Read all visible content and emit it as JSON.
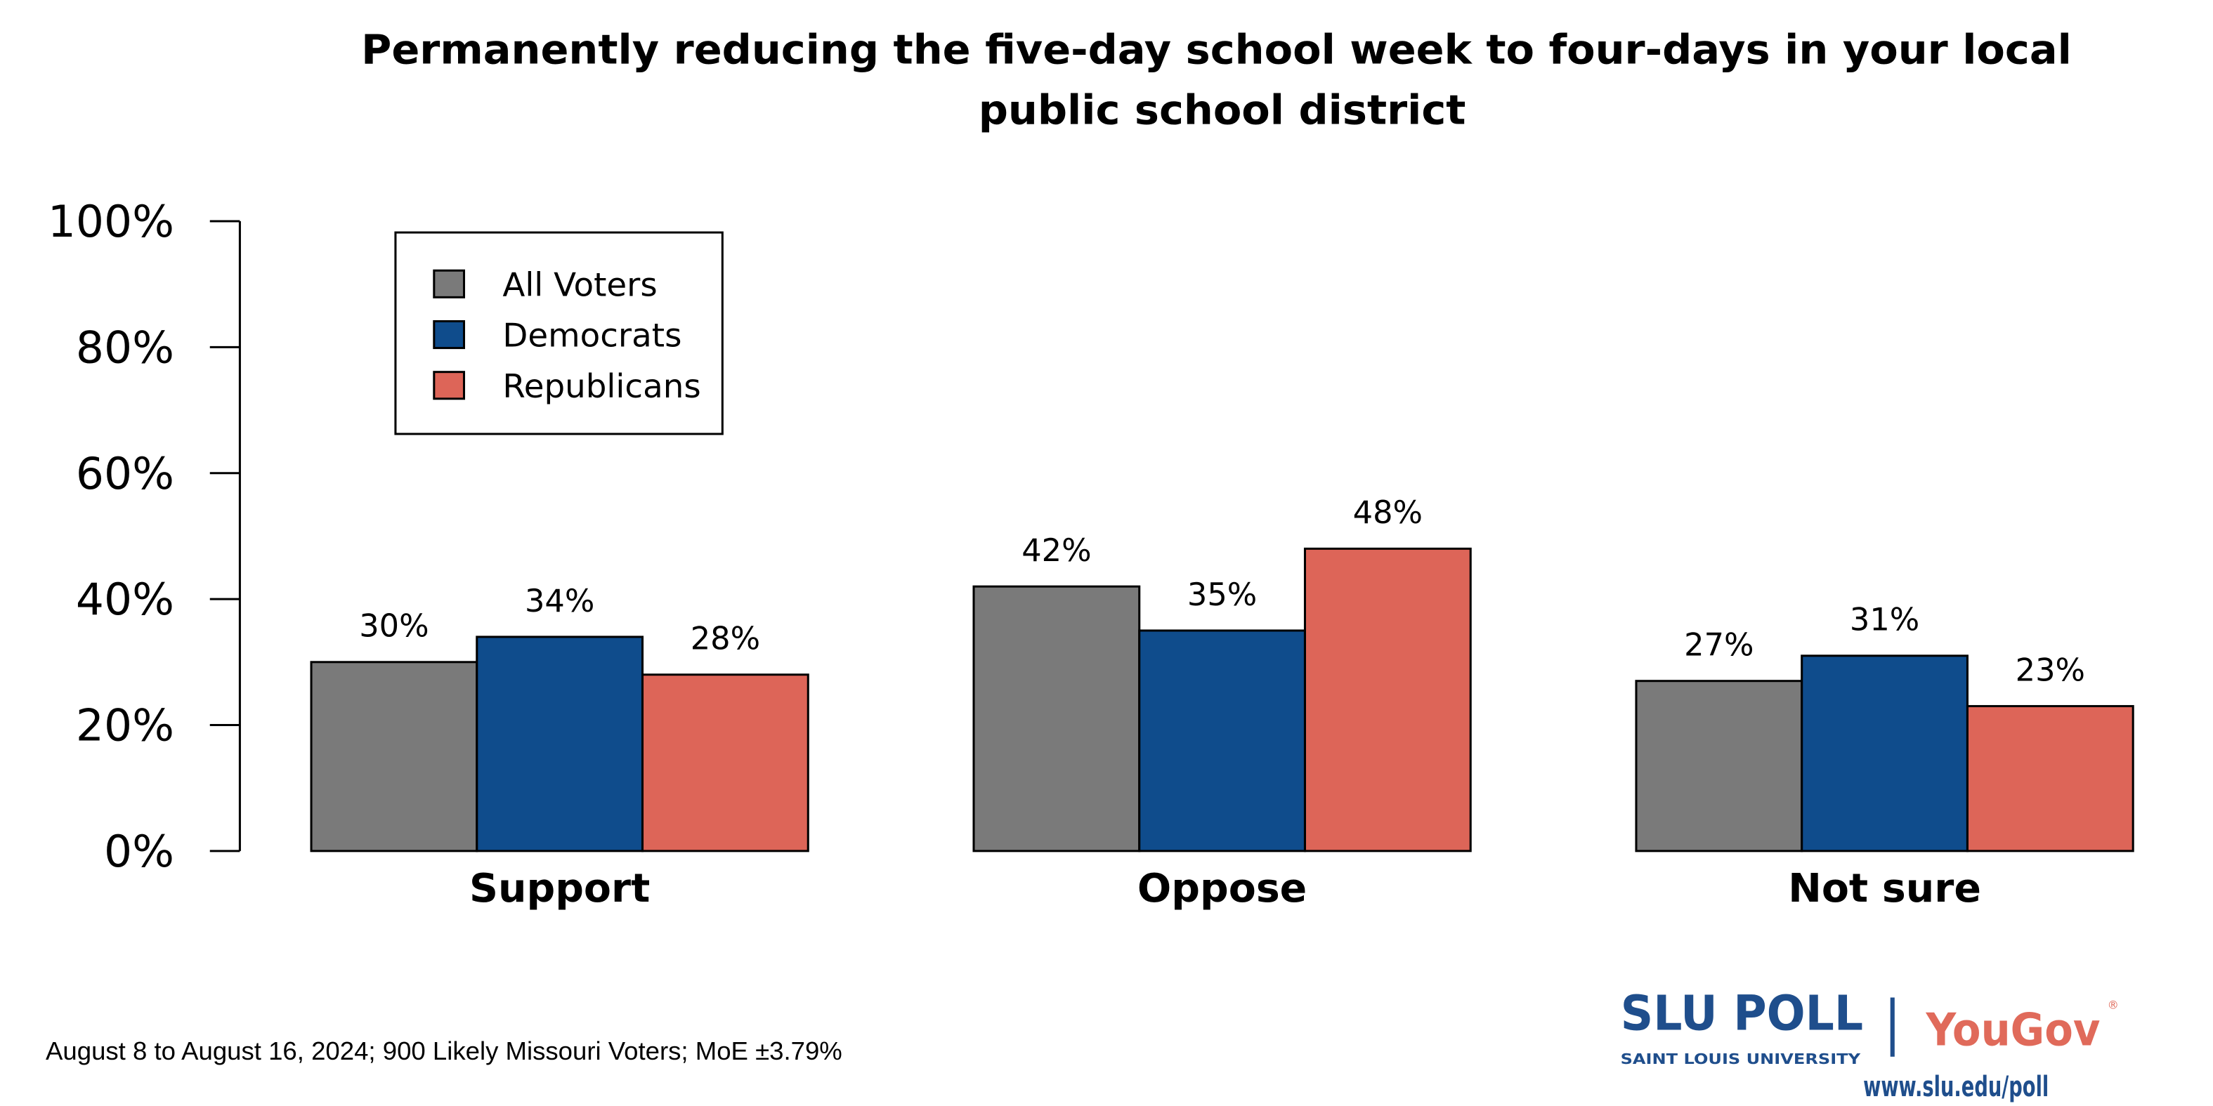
{
  "chart_data": {
    "type": "bar",
    "title": "Permanently reducing the five-day school week to four-days in your local public school district",
    "title_lines": [
      "Permanently reducing the five-day school week to four-days in your local",
      "public school district"
    ],
    "categories": [
      "Support",
      "Oppose",
      "Not sure"
    ],
    "series": [
      {
        "name": "All Voters",
        "values": [
          30,
          42,
          27
        ],
        "color": "#7a7a7a"
      },
      {
        "name": "Democrats",
        "values": [
          34,
          35,
          31
        ],
        "color": "#0f4c8c"
      },
      {
        "name": "Republicans",
        "values": [
          28,
          48,
          23
        ],
        "color": "#dd6558"
      }
    ],
    "data_labels": [
      [
        "30%",
        "42%",
        "27%"
      ],
      [
        "34%",
        "35%",
        "31%"
      ],
      [
        "28%",
        "48%",
        "23%"
      ]
    ],
    "ylim": [
      0,
      100
    ],
    "yticks": [
      "0%",
      "20%",
      "40%",
      "60%",
      "80%",
      "100%"
    ],
    "grid": false,
    "legend_position": "top-left",
    "xlabel": "",
    "ylabel": ""
  },
  "footer": {
    "note": "August 8 to August 16, 2024; 900 Likely Missouri Voters; MoE ±3.79%"
  },
  "logo": {
    "slu_poll": "SLU POLL",
    "slu_university": "SAINT LOUIS UNIVERSITY",
    "yougov": "YouGov",
    "url": "www.slu.edu/poll",
    "slu_color": "#1f4e8c",
    "yougov_color": "#e06a5a"
  }
}
